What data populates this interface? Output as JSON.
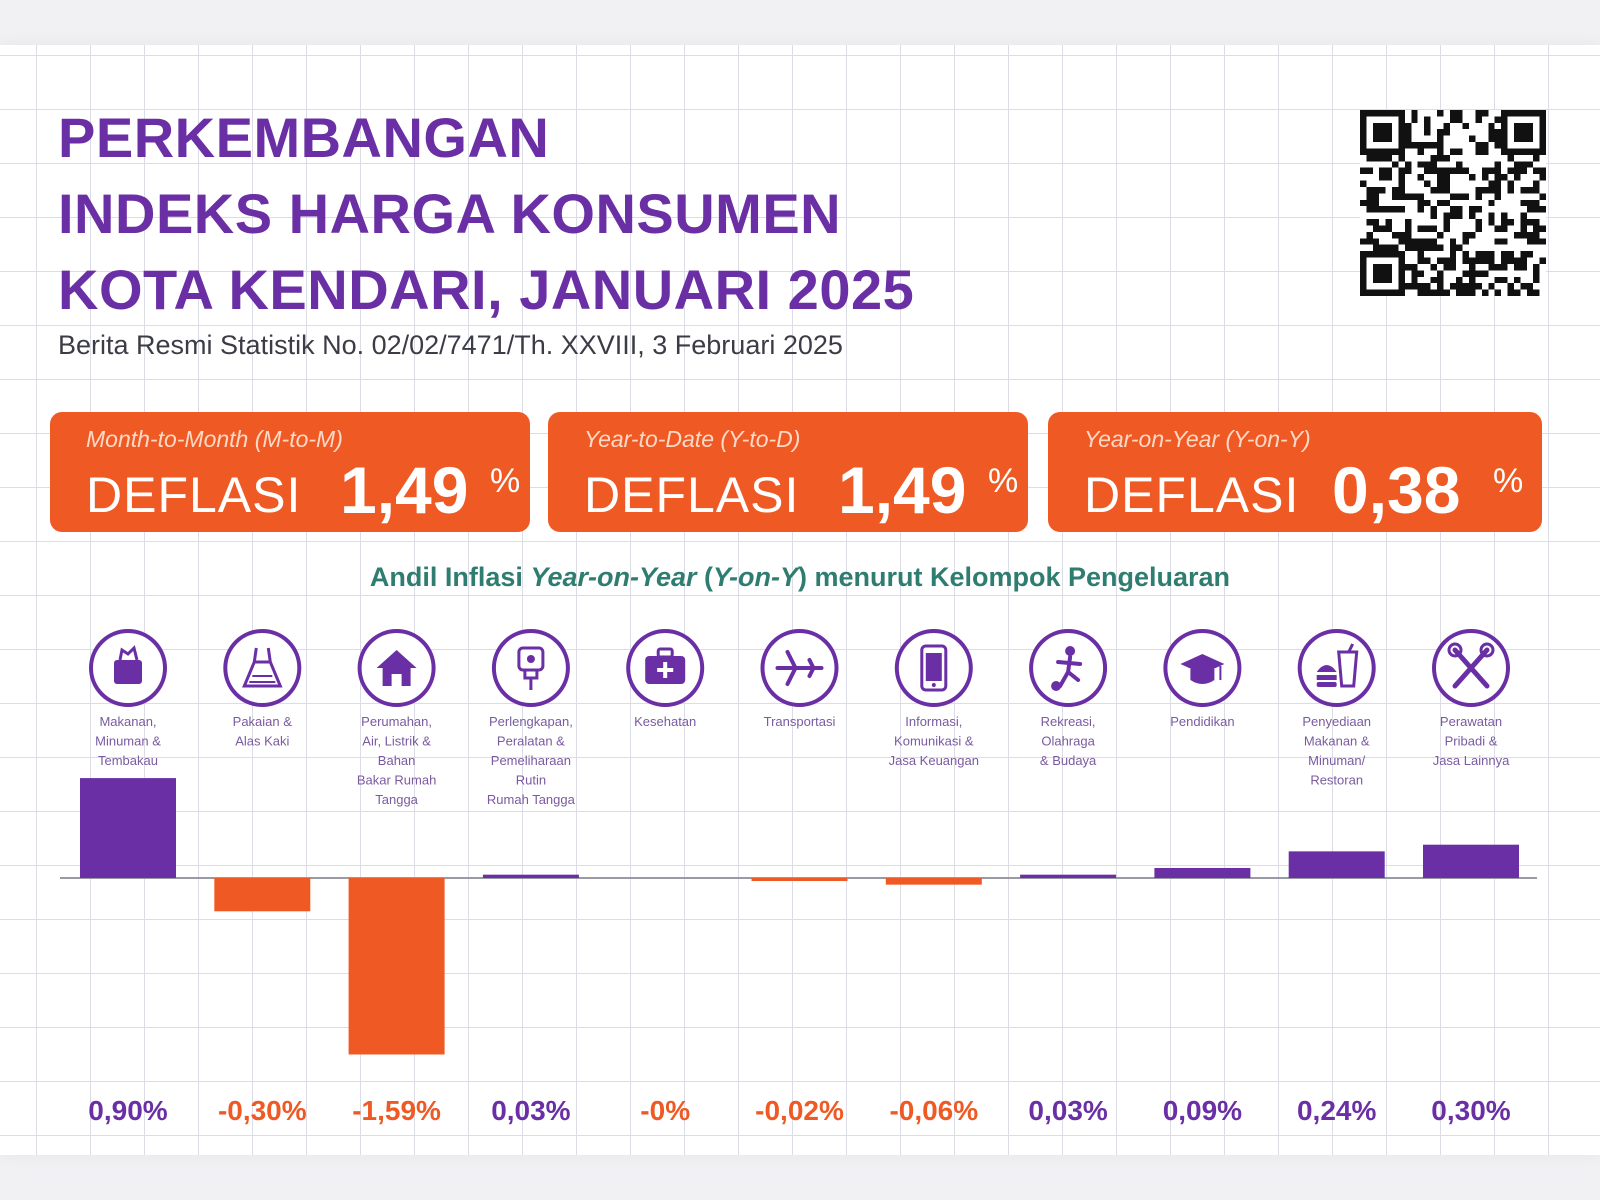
{
  "title_lines": [
    "PERKEMBANGAN",
    "INDEKS HARGA KONSUMEN",
    "KOTA KENDARI, JANUARI 2025"
  ],
  "subtitle": "Berita Resmi Statistik No. 02/02/7471/Th. XXVIII, 3 Februari 2025",
  "kpis": [
    {
      "period": "Month-to-Month (M-to-M)",
      "status": "DEFLASI",
      "value": "1,49",
      "unit": "%"
    },
    {
      "period": "Year-to-Date (Y-to-D)",
      "status": "DEFLASI",
      "value": "1,49",
      "unit": "%"
    },
    {
      "period": "Year-on-Year (Y-on-Y)",
      "status": "DEFLASI",
      "value": "0,38",
      "unit": "%"
    }
  ],
  "chart_data": {
    "type": "bar",
    "title_parts": [
      "Andil Inflasi ",
      "Year-on-Year",
      " (",
      "Y-on-Y",
      ") menurut Kelompok Pengeluaran"
    ],
    "categories": [
      "Makanan, Minuman & Tembakau",
      "Pakaian & Alas Kaki",
      "Perumahan, Air, Listrik & Bahan Bakar Rumah Tangga",
      "Perlengkapan, Peralatan & Pemeliharaan Rutin Rumah Tangga",
      "Kesehatan",
      "Transportasi",
      "Informasi, Komunikasi & Jasa Keuangan",
      "Rekreasi, Olahraga & Budaya",
      "Pendidikan",
      "Penyediaan Makanan & Minuman/ Restoran",
      "Perawatan Pribadi & Jasa Lainnya"
    ],
    "category_lines": [
      [
        "Makanan,",
        "Minuman &",
        "Tembakau"
      ],
      [
        "Pakaian &",
        "Alas Kaki"
      ],
      [
        "Perumahan,",
        "Air, Listrik &",
        "Bahan",
        "Bakar Rumah",
        "Tangga"
      ],
      [
        "Perlengkapan,",
        "Peralatan &",
        "Pemeliharaan",
        "Rutin",
        "Rumah Tangga"
      ],
      [
        "Kesehatan"
      ],
      [
        "Transportasi"
      ],
      [
        "Informasi,",
        "Komunikasi &",
        "Jasa Keuangan"
      ],
      [
        "Rekreasi,",
        "Olahraga",
        "& Budaya"
      ],
      [
        "Pendidikan"
      ],
      [
        "Penyediaan",
        "Makanan &",
        "Minuman/",
        "Restoran"
      ],
      [
        "Perawatan",
        "Pribadi &",
        "Jasa Lainnya"
      ]
    ],
    "icons": [
      "grocery-bag-icon",
      "dress-icon",
      "house-icon",
      "plug-icon",
      "medical-kit-icon",
      "airplane-icon",
      "smartphone-icon",
      "soccer-player-icon",
      "graduation-cap-icon",
      "fast-food-icon",
      "scissors-comb-icon"
    ],
    "values": [
      0.9,
      -0.3,
      -1.59,
      0.03,
      0,
      -0.02,
      -0.06,
      0.03,
      0.09,
      0.24,
      0.3
    ],
    "value_labels": [
      "0,90%",
      "-0,30%",
      "-1,59%",
      "0,03%",
      "-0%",
      "-0,02%",
      "-0,06%",
      "0,03%",
      "0,09%",
      "0,24%",
      "0,30%"
    ],
    "colors": {
      "positive": "#6a2fa5",
      "negative": "#ef5a24",
      "title": "#2f7d70"
    }
  }
}
